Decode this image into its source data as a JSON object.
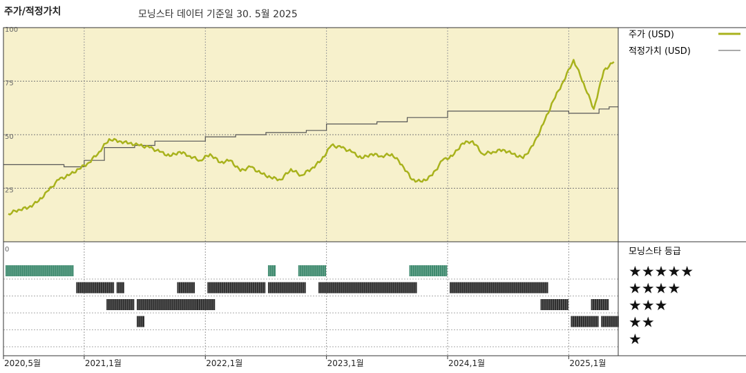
{
  "header": {
    "title": "주가/적정가치",
    "subtitle": "모닝스타 데이터 기준일 30. 5월 2025"
  },
  "legend": {
    "price_label": "주가 (USD)",
    "fair_label": "적정가치 (USD)",
    "rating_title": "모닝스타 등급"
  },
  "colors": {
    "plot_bg": "#f7f1cc",
    "price": "#a8b21c",
    "fair": "#555555",
    "rating_dark": "#2e2e2e",
    "rating_green": "#3e8a6e"
  },
  "chart_data": {
    "type": "line",
    "title": "주가/적정가치",
    "x_ticks": [
      "2020,5월",
      "2021,1월",
      "2022,1월",
      "2023,1월",
      "2024,1월",
      "2025,1월"
    ],
    "y_ticks": [
      "100",
      "75",
      "50",
      "25",
      "0"
    ],
    "ylim": [
      0,
      100
    ],
    "series": [
      {
        "name": "주가 (USD)",
        "x": [
          "2020-05",
          "2020-06",
          "2020-07",
          "2020-08",
          "2020-09",
          "2020-10",
          "2020-11",
          "2020-12",
          "2021-01",
          "2021-02",
          "2021-03",
          "2021-04",
          "2021-05",
          "2021-06",
          "2021-07",
          "2021-08",
          "2021-09",
          "2021-10",
          "2021-11",
          "2021-12",
          "2022-01",
          "2022-02",
          "2022-03",
          "2022-04",
          "2022-05",
          "2022-06",
          "2022-07",
          "2022-08",
          "2022-09",
          "2022-10",
          "2022-11",
          "2022-12",
          "2023-01",
          "2023-02",
          "2023-03",
          "2023-04",
          "2023-05",
          "2023-06",
          "2023-07",
          "2023-08",
          "2023-09",
          "2023-10",
          "2023-11",
          "2023-12",
          "2024-01",
          "2024-02",
          "2024-03",
          "2024-04",
          "2024-05",
          "2024-06",
          "2024-07",
          "2024-08",
          "2024-09",
          "2024-10",
          "2024-11",
          "2024-12",
          "2025-01",
          "2025-02",
          "2025-03",
          "2025-04",
          "2025-05"
        ],
        "values": [
          13,
          15,
          16,
          19,
          24,
          29,
          31,
          34,
          37,
          42,
          48,
          47,
          46,
          45,
          44,
          42,
          40,
          42,
          40,
          38,
          41,
          37,
          38,
          33,
          35,
          32,
          30,
          29,
          34,
          31,
          34,
          38,
          45,
          44,
          42,
          39,
          41,
          40,
          41,
          36,
          29,
          28,
          31,
          38,
          40,
          46,
          47,
          41,
          42,
          43,
          41,
          39,
          45,
          55,
          66,
          75,
          85,
          74,
          62,
          80,
          84
        ]
      },
      {
        "name": "적정가치 (USD)",
        "x": [
          "2020-05",
          "2020-11",
          "2021-01",
          "2021-03",
          "2021-06",
          "2021-08",
          "2022-01",
          "2022-04",
          "2022-07",
          "2022-11",
          "2023-01",
          "2023-06",
          "2023-09",
          "2024-01",
          "2024-06",
          "2025-01",
          "2025-04",
          "2025-05"
        ],
        "values": [
          36,
          35,
          38,
          44,
          45,
          47,
          49,
          50,
          51,
          52,
          55,
          56,
          58,
          61,
          61,
          60,
          62,
          63
        ]
      }
    ],
    "ratings": {
      "labels": [
        "★★★★★",
        "★★★★",
        "★★★",
        "★★",
        "★"
      ],
      "segments": [
        {
          "stars": 5,
          "from": "2020-05",
          "to": "2020-11"
        },
        {
          "stars": 4,
          "from": "2020-12",
          "to": "2021-03"
        },
        {
          "stars": 4,
          "from": "2021-04",
          "to": "2021-04"
        },
        {
          "stars": 3,
          "from": "2021-03",
          "to": "2021-05"
        },
        {
          "stars": 2,
          "from": "2021-06",
          "to": "2021-06"
        },
        {
          "stars": 3,
          "from": "2021-06",
          "to": "2021-12"
        },
        {
          "stars": 4,
          "from": "2021-10",
          "to": "2021-11"
        },
        {
          "stars": 3,
          "from": "2021-12",
          "to": "2022-01"
        },
        {
          "stars": 4,
          "from": "2022-01",
          "to": "2022-06"
        },
        {
          "stars": 5,
          "from": "2022-07",
          "to": "2022-07"
        },
        {
          "stars": 4,
          "from": "2022-07",
          "to": "2022-10"
        },
        {
          "stars": 5,
          "from": "2022-10",
          "to": "2022-12"
        },
        {
          "stars": 4,
          "from": "2022-12",
          "to": "2023-09"
        },
        {
          "stars": 5,
          "from": "2023-09",
          "to": "2023-12"
        },
        {
          "stars": 4,
          "from": "2024-01",
          "to": "2024-10"
        },
        {
          "stars": 3,
          "from": "2024-10",
          "to": "2024-12"
        },
        {
          "stars": 2,
          "from": "2025-01",
          "to": "2025-03"
        },
        {
          "stars": 3,
          "from": "2025-03",
          "to": "2025-04"
        },
        {
          "stars": 2,
          "from": "2025-04",
          "to": "2025-05"
        }
      ]
    }
  }
}
